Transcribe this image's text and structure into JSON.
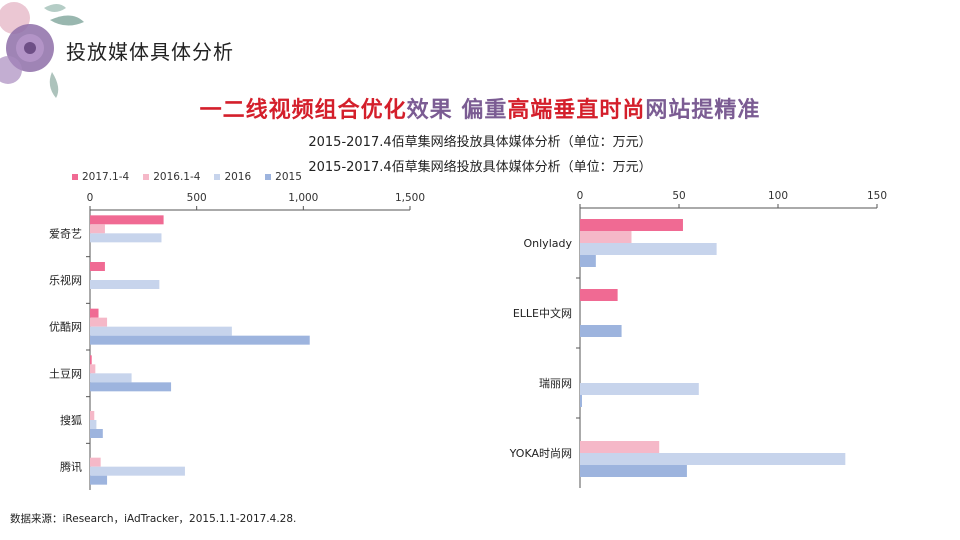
{
  "page": {
    "title": "投放媒体具体分析",
    "headline_parts": [
      "一二线视频组合优化",
      "效果 偏重",
      "高端垂直时尚",
      "网站提精准"
    ],
    "subtitle_1": "2015-2017.4佰草集网络投放具体媒体分析（单位：万元）",
    "subtitle_2": "2015-2017.4佰草集网络投放具体媒体分析（单位：万元）",
    "source": "数据来源：iResearch，iAdTracker，2015.1.1-2017.4.28."
  },
  "colors": {
    "2017.1-4": "#f06a93",
    "2016.1-4": "#f5b8c8",
    "2016": "#c7d4ec",
    "2015": "#9db4de",
    "headline_red": "#d41f2b",
    "headline_purple": "#7b5c93"
  },
  "chart_data": [
    {
      "type": "bar",
      "orientation": "horizontal",
      "categories": [
        "爱奇艺",
        "乐视网",
        "优酷网",
        "土豆网",
        "搜狐",
        "腾讯"
      ],
      "series": [
        {
          "name": "2017.1-4",
          "values": [
            345,
            70,
            40,
            8,
            0,
            0
          ]
        },
        {
          "name": "2016.1-4",
          "values": [
            70,
            0,
            80,
            25,
            20,
            50
          ]
        },
        {
          "name": "2016",
          "values": [
            335,
            325,
            665,
            195,
            30,
            445
          ]
        },
        {
          "name": "2015",
          "values": [
            0,
            0,
            1030,
            380,
            60,
            80
          ]
        }
      ],
      "xlim": [
        0,
        1500
      ],
      "xticks": [
        "0",
        "500",
        "1,000",
        "1,500"
      ],
      "legend": "top-left",
      "grid": false
    },
    {
      "type": "bar",
      "orientation": "horizontal",
      "categories": [
        "Onlylady",
        "ELLE中文网",
        "瑞丽网",
        "YOKA时尚网"
      ],
      "series": [
        {
          "name": "2017.1-4",
          "values": [
            52,
            19,
            0,
            0
          ]
        },
        {
          "name": "2016.1-4",
          "values": [
            26,
            0,
            0,
            40
          ]
        },
        {
          "name": "2016",
          "values": [
            69,
            0,
            60,
            134
          ]
        },
        {
          "name": "2015",
          "values": [
            8,
            21,
            1,
            54
          ]
        }
      ],
      "xlim": [
        0,
        150
      ],
      "xticks": [
        "0",
        "50",
        "100",
        "150"
      ],
      "grid": false
    }
  ]
}
